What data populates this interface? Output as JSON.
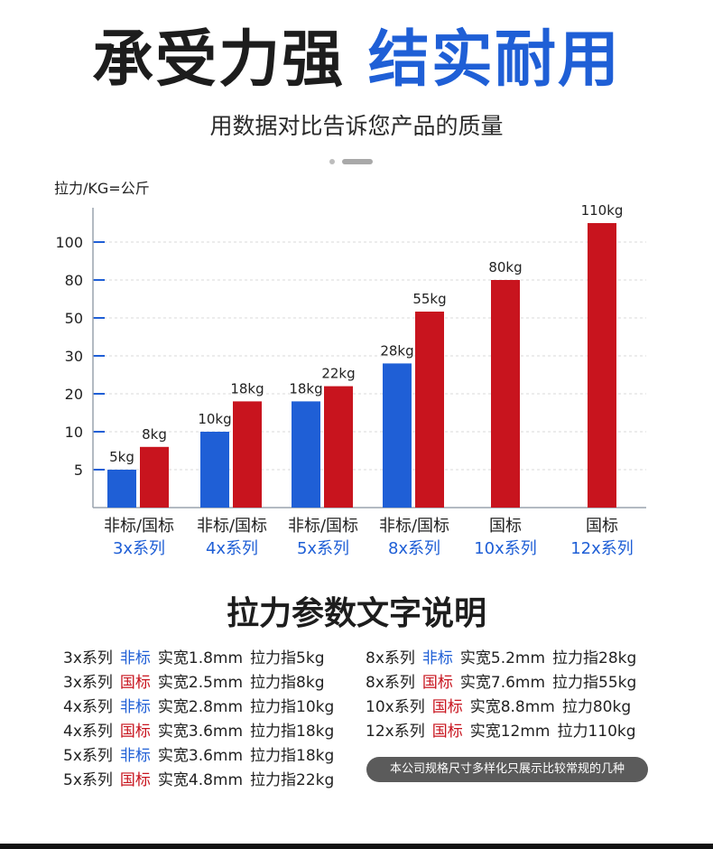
{
  "header": {
    "title_dark": "承受力强",
    "title_blue": "结实耐用",
    "subtitle": "用数据对比告诉您产品的质量"
  },
  "colors": {
    "blue": "#1f5fd6",
    "red": "#c8141e",
    "axis": "#9aa3ad",
    "grid": "#d9d9d9",
    "series_label": "#1f5fd6"
  },
  "chart_data": {
    "type": "bar",
    "ylabel": "拉力/KG=公斤",
    "yticks": [
      5,
      10,
      20,
      30,
      50,
      80,
      100
    ],
    "groups": [
      {
        "label": "非标/国标",
        "series_name": "3x系列",
        "bars": [
          {
            "grade": "非标",
            "value": 5,
            "label": "5kg"
          },
          {
            "grade": "国标",
            "value": 8,
            "label": "8kg"
          }
        ]
      },
      {
        "label": "非标/国标",
        "series_name": "4x系列",
        "bars": [
          {
            "grade": "非标",
            "value": 10,
            "label": "10kg"
          },
          {
            "grade": "国标",
            "value": 18,
            "label": "18kg"
          }
        ]
      },
      {
        "label": "非标/国标",
        "series_name": "5x系列",
        "bars": [
          {
            "grade": "非标",
            "value": 18,
            "label": "18kg"
          },
          {
            "grade": "国标",
            "value": 22,
            "label": "22kg"
          }
        ]
      },
      {
        "label": "非标/国标",
        "series_name": "8x系列",
        "bars": [
          {
            "grade": "非标",
            "value": 28,
            "label": "28kg"
          },
          {
            "grade": "国标",
            "value": 55,
            "label": "55kg"
          }
        ]
      },
      {
        "label": "国标",
        "series_name": "10x系列",
        "bars": [
          {
            "grade": "国标",
            "value": 80,
            "label": "80kg"
          }
        ]
      },
      {
        "label": "国标",
        "series_name": "12x系列",
        "bars": [
          {
            "grade": "国标",
            "value": 110,
            "label": "110kg"
          }
        ]
      }
    ]
  },
  "specs": {
    "title": "拉力参数文字说明",
    "left": [
      {
        "series": "3x系列",
        "grade": "非标",
        "width": "实宽1.8mm",
        "force": "拉力指5kg"
      },
      {
        "series": "3x系列",
        "grade": "国标",
        "width": "实宽2.5mm",
        "force": "拉力指8kg"
      },
      {
        "series": "4x系列",
        "grade": "非标",
        "width": "实宽2.8mm",
        "force": "拉力指10kg"
      },
      {
        "series": "4x系列",
        "grade": "国标",
        "width": "实宽3.6mm",
        "force": "拉力指18kg"
      },
      {
        "series": "5x系列",
        "grade": "非标",
        "width": "实宽3.6mm",
        "force": "拉力指18kg"
      },
      {
        "series": "5x系列",
        "grade": "国标",
        "width": "实宽4.8mm",
        "force": "拉力指22kg"
      }
    ],
    "right": [
      {
        "series": "8x系列",
        "grade": "非标",
        "width": "实宽5.2mm",
        "force": "拉力指28kg"
      },
      {
        "series": "8x系列",
        "grade": "国标",
        "width": "实宽7.6mm",
        "force": "拉力指55kg"
      },
      {
        "series": "10x系列",
        "grade": "国标",
        "width": "实宽8.8mm",
        "force": "拉力80kg"
      },
      {
        "series": "12x系列",
        "grade": "国标",
        "width": "实宽12mm",
        "force": "拉力110kg"
      }
    ],
    "note": "本公司规格尺寸多样化只展示比较常规的几种"
  }
}
